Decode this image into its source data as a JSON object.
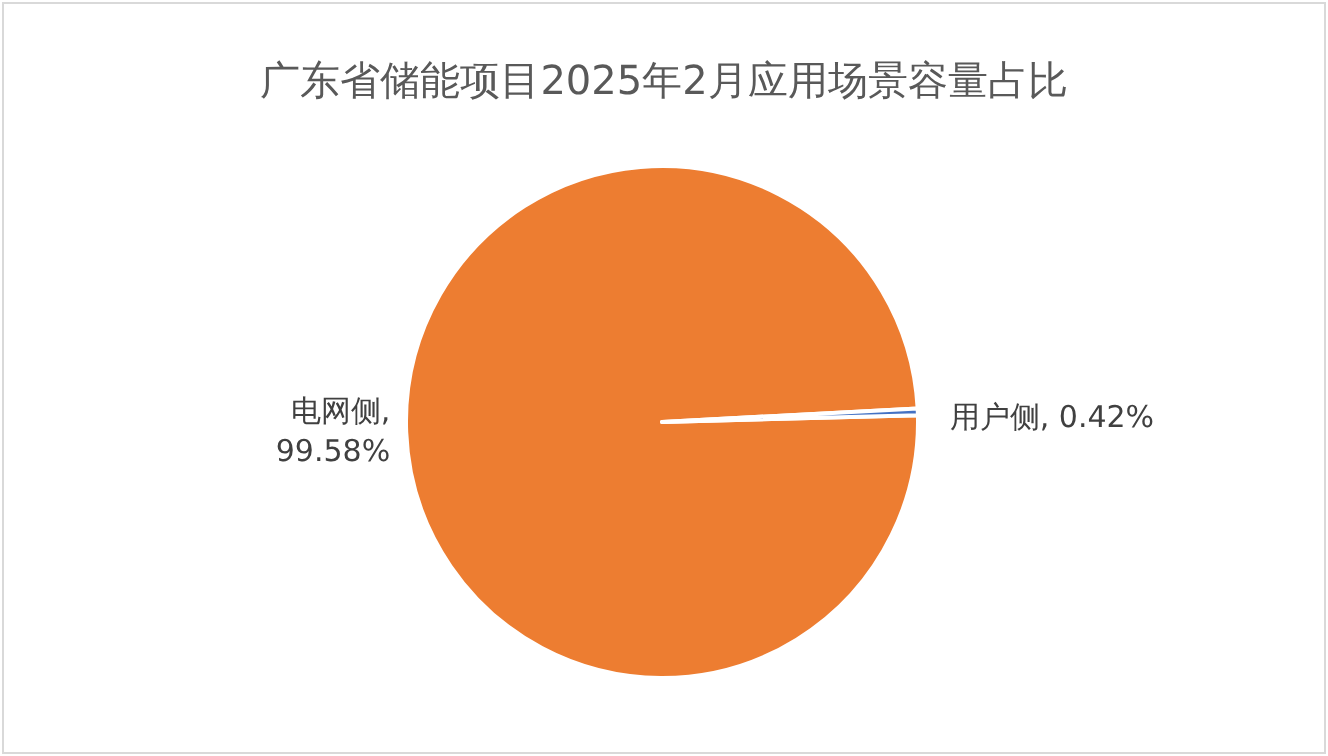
{
  "chart_data": {
    "type": "pie",
    "title": "广东省储能项目2025年2月应用场景容量占比",
    "categories": [
      "电网侧",
      "用户侧"
    ],
    "values": [
      99.58,
      0.42
    ],
    "value_labels": [
      ", 99.58%",
      ", 0.42%"
    ],
    "colors": [
      "#ed7d31",
      "#4472c4"
    ],
    "legend": false
  }
}
